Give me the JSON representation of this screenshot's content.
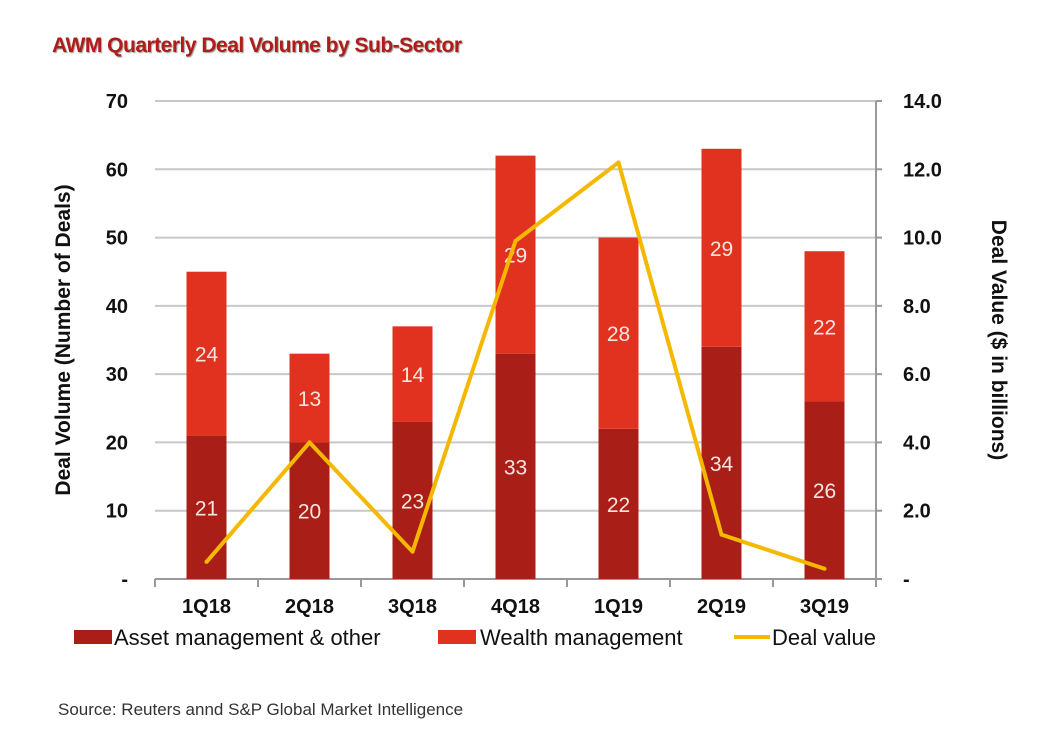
{
  "chart_data": {
    "type": "bar",
    "stacked": true,
    "title": "AWM Quarterly Deal Volume by Sub-Sector",
    "categories": [
      "1Q18",
      "2Q18",
      "3Q18",
      "4Q18",
      "1Q19",
      "2Q19",
      "3Q19"
    ],
    "series": [
      {
        "name": "Asset management & other",
        "type": "bar",
        "axis": "left",
        "color": "#a91f17",
        "values": [
          21,
          20,
          23,
          33,
          22,
          34,
          26
        ]
      },
      {
        "name": "Wealth management",
        "type": "bar",
        "axis": "left",
        "color": "#e0321f",
        "values": [
          24,
          13,
          14,
          29,
          28,
          29,
          22
        ]
      },
      {
        "name": "Deal value",
        "type": "line",
        "axis": "right",
        "color": "#f5b800",
        "values": [
          0.5,
          4.0,
          0.8,
          9.9,
          12.2,
          1.3,
          0.3
        ]
      }
    ],
    "ylabel": "Deal Volume (Number of Deals)",
    "y2label": "Deal Value ($ in billions)",
    "ylim": [
      0,
      70
    ],
    "y2lim": [
      0,
      14
    ],
    "yticks": [
      "-",
      "10",
      "20",
      "30",
      "40",
      "50",
      "60",
      "70"
    ],
    "y2ticks": [
      "-",
      "2.0",
      "4.0",
      "6.0",
      "8.0",
      "10.0",
      "12.0",
      "14.0"
    ],
    "grid": true,
    "legend_position": "bottom",
    "title_color": "#b01c18"
  },
  "source": "Source: Reuters annd S&P Global Market Intelligence"
}
